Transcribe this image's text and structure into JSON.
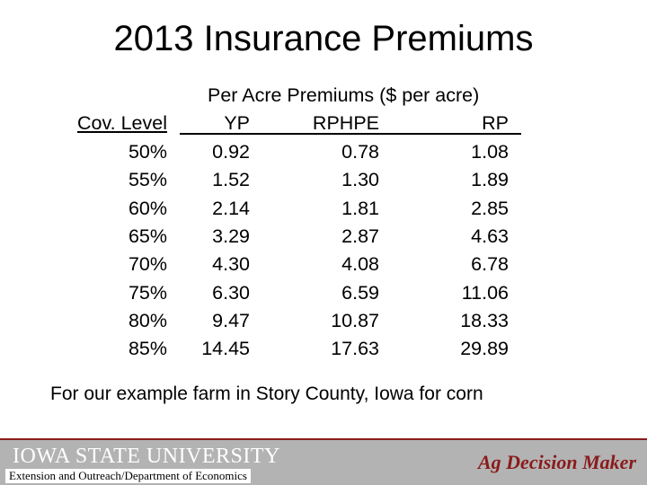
{
  "slide": {
    "title": "2013 Insurance Premiums",
    "supertitle": "Per Acre Premiums ($ per acre)",
    "footnote": "For our example farm in Story County, Iowa for corn"
  },
  "table": {
    "headers": [
      "Cov. Level",
      "YP",
      "RPHPE",
      "RP"
    ],
    "rows": [
      [
        "50%",
        "0.92",
        "0.78",
        "1.08"
      ],
      [
        "55%",
        "1.52",
        "1.30",
        "1.89"
      ],
      [
        "60%",
        "2.14",
        "1.81",
        "2.85"
      ],
      [
        "65%",
        "3.29",
        "2.87",
        "4.63"
      ],
      [
        "70%",
        "4.30",
        "4.08",
        "6.78"
      ],
      [
        "75%",
        "6.30",
        "6.59",
        "11.06"
      ],
      [
        "80%",
        "9.47",
        "10.87",
        "18.33"
      ],
      [
        "85%",
        "14.45",
        "17.63",
        "29.89"
      ]
    ]
  },
  "footer": {
    "university": "IOWA STATE UNIVERSITY",
    "department": "Extension and Outreach/Department of Economics",
    "brand": "Ag Decision Maker",
    "colors": {
      "band": "#b3b3b3",
      "accent": "#8a1b1b"
    }
  }
}
